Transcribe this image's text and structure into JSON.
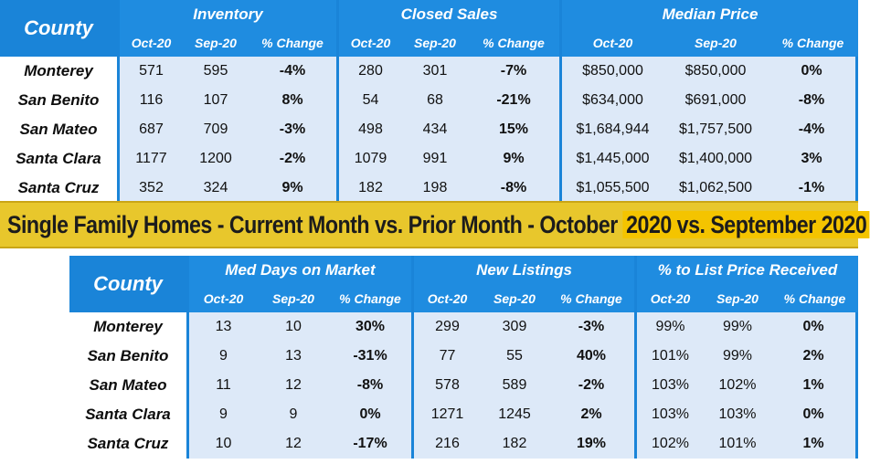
{
  "top_table": {
    "county_header": "County",
    "groups": [
      "Inventory",
      "Closed Sales",
      "Median Price"
    ],
    "subheaders": [
      "Oct-20",
      "Sep-20",
      "% Change",
      "Oct-20",
      "Sep-20",
      "% Change",
      "Oct-20",
      "Sep-20",
      "% Change"
    ],
    "rows": [
      {
        "county": "Monterey",
        "cells": [
          "571",
          "595",
          "-4%",
          "280",
          "301",
          "-7%",
          "$850,000",
          "$850,000",
          "0%"
        ]
      },
      {
        "county": "San Benito",
        "cells": [
          "116",
          "107",
          "8%",
          "54",
          "68",
          "-21%",
          "$634,000",
          "$691,000",
          "-8%"
        ]
      },
      {
        "county": "San Mateo",
        "cells": [
          "687",
          "709",
          "-3%",
          "498",
          "434",
          "15%",
          "$1,684,944",
          "$1,757,500",
          "-4%"
        ]
      },
      {
        "county": "Santa Clara",
        "cells": [
          "1177",
          "1200",
          "-2%",
          "1079",
          "991",
          "9%",
          "$1,445,000",
          "$1,400,000",
          "3%"
        ]
      },
      {
        "county": "Santa Cruz",
        "cells": [
          "352",
          "324",
          "9%",
          "182",
          "198",
          "-8%",
          "$1,055,500",
          "$1,062,500",
          "-1%"
        ]
      }
    ]
  },
  "banner": {
    "text_main": "Single Family Homes - Current Month vs. Prior Month - October ",
    "text_highlight": "2020 vs. September 2020"
  },
  "bottom_table": {
    "county_header": "County",
    "groups": [
      "Med Days on Market",
      "New Listings",
      "% to List Price Received"
    ],
    "subheaders": [
      "Oct-20",
      "Sep-20",
      "% Change",
      "Oct-20",
      "Sep-20",
      "% Change",
      "Oct-20",
      "Sep-20",
      "% Change"
    ],
    "rows": [
      {
        "county": "Monterey",
        "cells": [
          "13",
          "10",
          "30%",
          "299",
          "309",
          "-3%",
          "99%",
          "99%",
          "0%"
        ]
      },
      {
        "county": "San Benito",
        "cells": [
          "9",
          "13",
          "-31%",
          "77",
          "55",
          "40%",
          "101%",
          "99%",
          "2%"
        ]
      },
      {
        "county": "San Mateo",
        "cells": [
          "11",
          "12",
          "-8%",
          "578",
          "589",
          "-2%",
          "103%",
          "102%",
          "1%"
        ]
      },
      {
        "county": "Santa Clara",
        "cells": [
          "9",
          "9",
          "0%",
          "1271",
          "1245",
          "2%",
          "103%",
          "103%",
          "0%"
        ]
      },
      {
        "county": "Santa Cruz",
        "cells": [
          "10",
          "12",
          "-17%",
          "216",
          "182",
          "19%",
          "102%",
          "101%",
          "1%"
        ]
      }
    ]
  },
  "colors": {
    "header_blue": "#1f8ce0",
    "cell_light_blue": "#dde9f8",
    "negative_red": "#e0202e",
    "positive_green": "#1f9a4a",
    "banner_yellow": "#e8c72c"
  }
}
